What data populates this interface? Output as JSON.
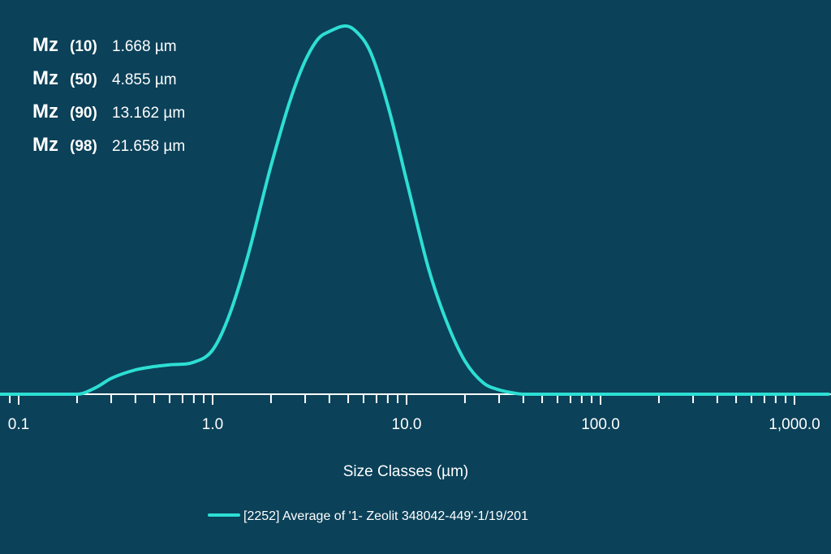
{
  "stats": [
    {
      "prefix": "Mz",
      "percentile": "(10)",
      "value": "1.668 µm"
    },
    {
      "prefix": "Mz",
      "percentile": "(50)",
      "value": "4.855 µm"
    },
    {
      "prefix": "Mz",
      "percentile": "(90)",
      "value": "13.162 µm"
    },
    {
      "prefix": "Mz",
      "percentile": "(98)",
      "value": "21.658 µm"
    }
  ],
  "chart_data": {
    "type": "line",
    "xscale": "log",
    "xlim": [
      0.08,
      1500
    ],
    "ylim": [
      0,
      1
    ],
    "xlabel": "Size Classes (µm)",
    "ylabel": "",
    "title": "",
    "grid": false,
    "legend_position": "bottom",
    "x_ticks": [
      0.1,
      1.0,
      10.0,
      100.0,
      1000.0
    ],
    "x_tick_labels": [
      "0.1",
      "1.0",
      "10.0",
      "100.0",
      "1,000.0"
    ],
    "series": [
      {
        "name": "[2252] Average of '1- Zeolit 348042-449'-1/19/201",
        "color": "#2ddfd3",
        "x": [
          0.08,
          0.2,
          0.25,
          0.3,
          0.4,
          0.5,
          0.6,
          0.8,
          1.0,
          1.2,
          1.5,
          2.0,
          2.5,
          3.0,
          3.5,
          4.0,
          4.855,
          5.5,
          6.5,
          8.0,
          10.0,
          13.0,
          16.0,
          20.0,
          25.0,
          30.0,
          35.0,
          40.0,
          100.0,
          1500.0
        ],
        "y": [
          0.0,
          0.0,
          0.018,
          0.043,
          0.066,
          0.075,
          0.08,
          0.087,
          0.12,
          0.205,
          0.365,
          0.62,
          0.795,
          0.905,
          0.965,
          0.985,
          1.0,
          0.985,
          0.93,
          0.785,
          0.58,
          0.34,
          0.2,
          0.09,
          0.03,
          0.012,
          0.004,
          0.0,
          0.0,
          0.0
        ]
      }
    ]
  }
}
